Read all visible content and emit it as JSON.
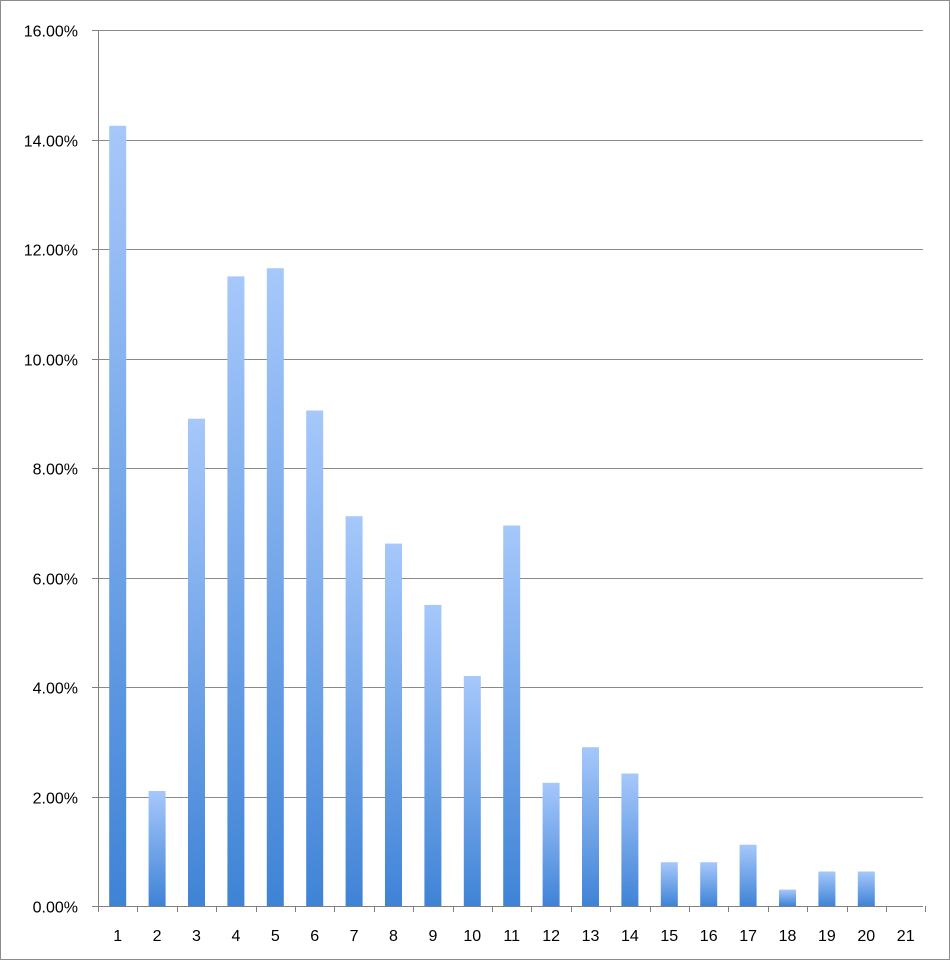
{
  "chart_data": {
    "type": "bar",
    "title": "",
    "xlabel": "",
    "ylabel": "",
    "categories": [
      "1",
      "2",
      "3",
      "4",
      "5",
      "6",
      "7",
      "8",
      "9",
      "10",
      "11",
      "12",
      "13",
      "14",
      "15",
      "16",
      "17",
      "18",
      "19",
      "20",
      "21"
    ],
    "values": [
      14.25,
      2.1,
      8.9,
      11.5,
      11.65,
      9.05,
      7.12,
      6.62,
      5.5,
      4.2,
      6.95,
      2.25,
      2.9,
      2.42,
      0.8,
      0.8,
      1.12,
      0.3,
      0.63,
      0.63,
      0
    ],
    "ylim": [
      0,
      16
    ],
    "yticks": [
      0,
      2,
      4,
      6,
      8,
      10,
      12,
      14,
      16
    ],
    "ytick_labels": [
      "0.00%",
      "2.00%",
      "4.00%",
      "6.00%",
      "8.00%",
      "10.00%",
      "12.00%",
      "14.00%",
      "16.00%"
    ],
    "grid": true,
    "legend": "none",
    "colors": {
      "bar_top": "#a6c8fb",
      "bar_bottom": "#3f83d6",
      "grid": "#8a8a8a",
      "axis": "#7f7f7f"
    }
  }
}
